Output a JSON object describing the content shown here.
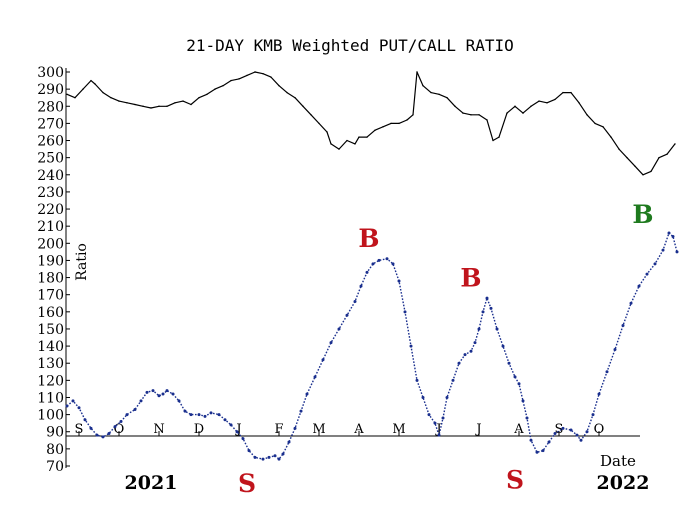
{
  "chart_data": {
    "type": "line",
    "title": "21-DAY KMB Weighted PUT/CALL RATIO",
    "ylabel": "Ratio",
    "xlabel": "Date",
    "ylim": [
      70,
      300
    ],
    "yticks": [
      70,
      80,
      90,
      100,
      110,
      120,
      130,
      140,
      150,
      160,
      170,
      180,
      190,
      200,
      210,
      220,
      230,
      240,
      250,
      260,
      270,
      280,
      290,
      300
    ],
    "grid": false,
    "month_ticks": [
      {
        "label": "S",
        "m": 0
      },
      {
        "label": "O",
        "m": 1
      },
      {
        "label": "N",
        "m": 2
      },
      {
        "label": "D",
        "m": 3
      },
      {
        "label": "J",
        "m": 4
      },
      {
        "label": "F",
        "m": 5
      },
      {
        "label": "M",
        "m": 6
      },
      {
        "label": "A",
        "m": 7
      },
      {
        "label": "M",
        "m": 8
      },
      {
        "label": "J",
        "m": 9
      },
      {
        "label": "J",
        "m": 10
      },
      {
        "label": "A",
        "m": 11
      },
      {
        "label": "S",
        "m": 12
      },
      {
        "label": "O",
        "m": 13
      }
    ],
    "years": [
      {
        "label": "2021",
        "m": 0.5
      },
      {
        "label": "2022",
        "m": 12.3
      }
    ],
    "series": [
      {
        "kind": "price",
        "color": "#000000",
        "points": [
          [
            -0.3,
            287
          ],
          [
            -0.1,
            285
          ],
          [
            0.1,
            290
          ],
          [
            0.3,
            295
          ],
          [
            0.4,
            293
          ],
          [
            0.6,
            288
          ],
          [
            0.8,
            285
          ],
          [
            1.0,
            283
          ],
          [
            1.2,
            282
          ],
          [
            1.4,
            281
          ],
          [
            1.6,
            280
          ],
          [
            1.8,
            279
          ],
          [
            2.0,
            280
          ],
          [
            2.2,
            280
          ],
          [
            2.4,
            282
          ],
          [
            2.6,
            283
          ],
          [
            2.8,
            281
          ],
          [
            3.0,
            285
          ],
          [
            3.2,
            287
          ],
          [
            3.4,
            290
          ],
          [
            3.6,
            292
          ],
          [
            3.8,
            295
          ],
          [
            4.0,
            296
          ],
          [
            4.2,
            298
          ],
          [
            4.4,
            300
          ],
          [
            4.6,
            299
          ],
          [
            4.8,
            297
          ],
          [
            5.0,
            292
          ],
          [
            5.2,
            288
          ],
          [
            5.4,
            285
          ],
          [
            5.6,
            280
          ],
          [
            5.8,
            275
          ],
          [
            6.0,
            270
          ],
          [
            6.2,
            265
          ],
          [
            6.3,
            258
          ],
          [
            6.5,
            255
          ],
          [
            6.7,
            260
          ],
          [
            6.9,
            258
          ],
          [
            7.0,
            262
          ],
          [
            7.2,
            262
          ],
          [
            7.4,
            266
          ],
          [
            7.6,
            268
          ],
          [
            7.8,
            270
          ],
          [
            8.0,
            270
          ],
          [
            8.2,
            272
          ],
          [
            8.35,
            275
          ],
          [
            8.45,
            300
          ],
          [
            8.6,
            292
          ],
          [
            8.8,
            288
          ],
          [
            9.0,
            287
          ],
          [
            9.2,
            285
          ],
          [
            9.4,
            280
          ],
          [
            9.6,
            276
          ],
          [
            9.8,
            275
          ],
          [
            10.0,
            275
          ],
          [
            10.2,
            272
          ],
          [
            10.35,
            260
          ],
          [
            10.5,
            262
          ],
          [
            10.7,
            276
          ],
          [
            10.9,
            280
          ],
          [
            11.1,
            276
          ],
          [
            11.3,
            280
          ],
          [
            11.5,
            283
          ],
          [
            11.7,
            282
          ],
          [
            11.9,
            284
          ],
          [
            12.1,
            288
          ],
          [
            12.3,
            288
          ],
          [
            12.5,
            282
          ],
          [
            12.7,
            275
          ],
          [
            12.9,
            270
          ],
          [
            13.1,
            268
          ],
          [
            13.3,
            262
          ],
          [
            13.5,
            255
          ],
          [
            13.7,
            250
          ],
          [
            13.9,
            245
          ],
          [
            14.1,
            240
          ],
          [
            14.3,
            242
          ],
          [
            14.5,
            250
          ],
          [
            14.7,
            252
          ],
          [
            14.9,
            258
          ]
        ]
      },
      {
        "kind": "ratio",
        "color": "#1a2f8e",
        "points": [
          [
            -0.3,
            105
          ],
          [
            -0.15,
            108
          ],
          [
            0.0,
            104
          ],
          [
            0.15,
            97
          ],
          [
            0.3,
            92
          ],
          [
            0.45,
            88
          ],
          [
            0.6,
            87
          ],
          [
            0.75,
            89
          ],
          [
            0.9,
            93
          ],
          [
            1.05,
            96
          ],
          [
            1.2,
            100
          ],
          [
            1.4,
            103
          ],
          [
            1.55,
            108
          ],
          [
            1.7,
            113
          ],
          [
            1.85,
            114
          ],
          [
            2.0,
            111
          ],
          [
            2.1,
            112
          ],
          [
            2.2,
            114
          ],
          [
            2.35,
            112
          ],
          [
            2.5,
            108
          ],
          [
            2.65,
            102
          ],
          [
            2.8,
            100
          ],
          [
            3.0,
            100
          ],
          [
            3.15,
            99
          ],
          [
            3.3,
            101
          ],
          [
            3.5,
            100
          ],
          [
            3.65,
            97
          ],
          [
            3.8,
            94
          ],
          [
            3.95,
            90
          ],
          [
            4.1,
            86
          ],
          [
            4.25,
            79
          ],
          [
            4.4,
            75
          ],
          [
            4.6,
            74
          ],
          [
            4.75,
            75
          ],
          [
            4.9,
            76
          ],
          [
            5.0,
            74
          ],
          [
            5.1,
            77
          ],
          [
            5.25,
            84
          ],
          [
            5.4,
            92
          ],
          [
            5.55,
            102
          ],
          [
            5.7,
            112
          ],
          [
            5.9,
            122
          ],
          [
            6.1,
            132
          ],
          [
            6.3,
            142
          ],
          [
            6.5,
            150
          ],
          [
            6.7,
            158
          ],
          [
            6.9,
            166
          ],
          [
            7.05,
            175
          ],
          [
            7.2,
            183
          ],
          [
            7.35,
            188
          ],
          [
            7.5,
            190
          ],
          [
            7.7,
            191
          ],
          [
            7.85,
            188
          ],
          [
            8.0,
            178
          ],
          [
            8.15,
            160
          ],
          [
            8.3,
            140
          ],
          [
            8.45,
            120
          ],
          [
            8.6,
            110
          ],
          [
            8.75,
            100
          ],
          [
            8.9,
            95
          ],
          [
            9.0,
            88
          ],
          [
            9.1,
            98
          ],
          [
            9.2,
            110
          ],
          [
            9.35,
            120
          ],
          [
            9.5,
            130
          ],
          [
            9.65,
            135
          ],
          [
            9.8,
            137
          ],
          [
            9.9,
            142
          ],
          [
            10.0,
            150
          ],
          [
            10.1,
            160
          ],
          [
            10.2,
            168
          ],
          [
            10.3,
            162
          ],
          [
            10.45,
            150
          ],
          [
            10.6,
            140
          ],
          [
            10.75,
            130
          ],
          [
            10.9,
            122
          ],
          [
            11.0,
            118
          ],
          [
            11.1,
            108
          ],
          [
            11.2,
            98
          ],
          [
            11.3,
            85
          ],
          [
            11.45,
            78
          ],
          [
            11.6,
            79
          ],
          [
            11.75,
            84
          ],
          [
            11.9,
            89
          ],
          [
            12.1,
            92
          ],
          [
            12.3,
            91
          ],
          [
            12.45,
            88
          ],
          [
            12.55,
            85
          ],
          [
            12.7,
            90
          ],
          [
            12.85,
            100
          ],
          [
            13.0,
            112
          ],
          [
            13.2,
            125
          ],
          [
            13.4,
            138
          ],
          [
            13.6,
            152
          ],
          [
            13.8,
            165
          ],
          [
            14.0,
            175
          ],
          [
            14.2,
            182
          ],
          [
            14.4,
            188
          ],
          [
            14.6,
            196
          ],
          [
            14.75,
            206
          ],
          [
            14.85,
            204
          ],
          [
            14.95,
            195
          ]
        ]
      }
    ],
    "annotations": [
      {
        "label": "B",
        "color": "#c0141c",
        "m": 7.25,
        "v": 203
      },
      {
        "label": "B",
        "color": "#c0141c",
        "m": 9.8,
        "v": 180
      },
      {
        "label": "B",
        "color": "#1e7a1e",
        "m": 14.1,
        "v": 217
      },
      {
        "label": "S",
        "color": "#c0141c",
        "m": 4.2,
        "v": 60
      },
      {
        "label": "S",
        "color": "#c0141c",
        "m": 10.9,
        "v": 62
      }
    ]
  }
}
